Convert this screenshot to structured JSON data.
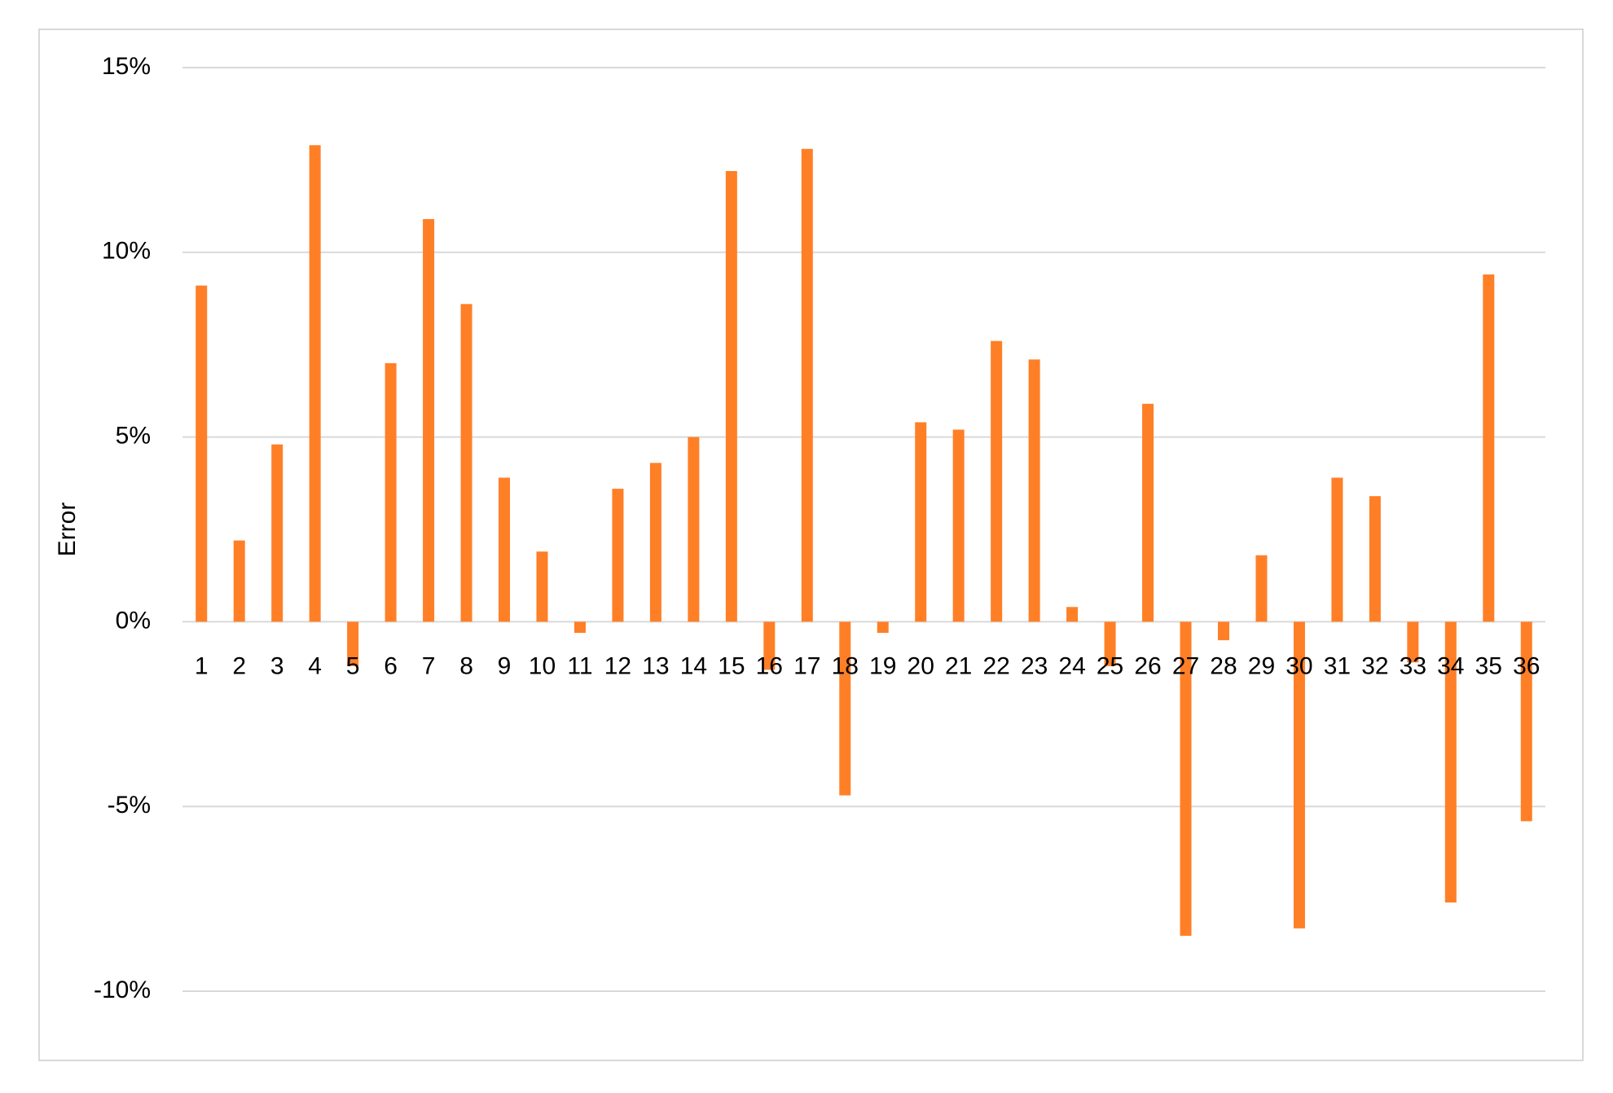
{
  "chart_data": {
    "type": "bar",
    "y_label": "Error",
    "categories": [
      "1",
      "2",
      "3",
      "4",
      "5",
      "6",
      "7",
      "8",
      "9",
      "10",
      "11",
      "12",
      "13",
      "14",
      "15",
      "16",
      "17",
      "18",
      "19",
      "20",
      "21",
      "22",
      "23",
      "24",
      "25",
      "26",
      "27",
      "28",
      "29",
      "30",
      "31",
      "32",
      "33",
      "34",
      "35",
      "36"
    ],
    "values": [
      9.1,
      2.2,
      4.8,
      12.9,
      -1.2,
      7.0,
      10.9,
      8.6,
      3.9,
      1.9,
      -0.3,
      3.6,
      4.3,
      5.0,
      12.2,
      -1.3,
      12.8,
      -4.7,
      -0.3,
      5.4,
      5.2,
      7.6,
      7.1,
      0.4,
      -1.2,
      5.9,
      -8.5,
      -0.5,
      1.8,
      -8.3,
      3.9,
      3.4,
      -1.1,
      -7.6,
      9.4,
      -5.4
    ],
    "color": "#ff7f27",
    "ylim": [
      -10,
      15
    ],
    "yticks": [
      {
        "value": -10,
        "label": "-10%"
      },
      {
        "value": -5,
        "label": "-5%"
      },
      {
        "value": 0,
        "label": "0%"
      },
      {
        "value": 5,
        "label": "5%"
      },
      {
        "value": 10,
        "label": "10%"
      },
      {
        "value": 15,
        "label": "15%"
      }
    ],
    "grid": true
  }
}
